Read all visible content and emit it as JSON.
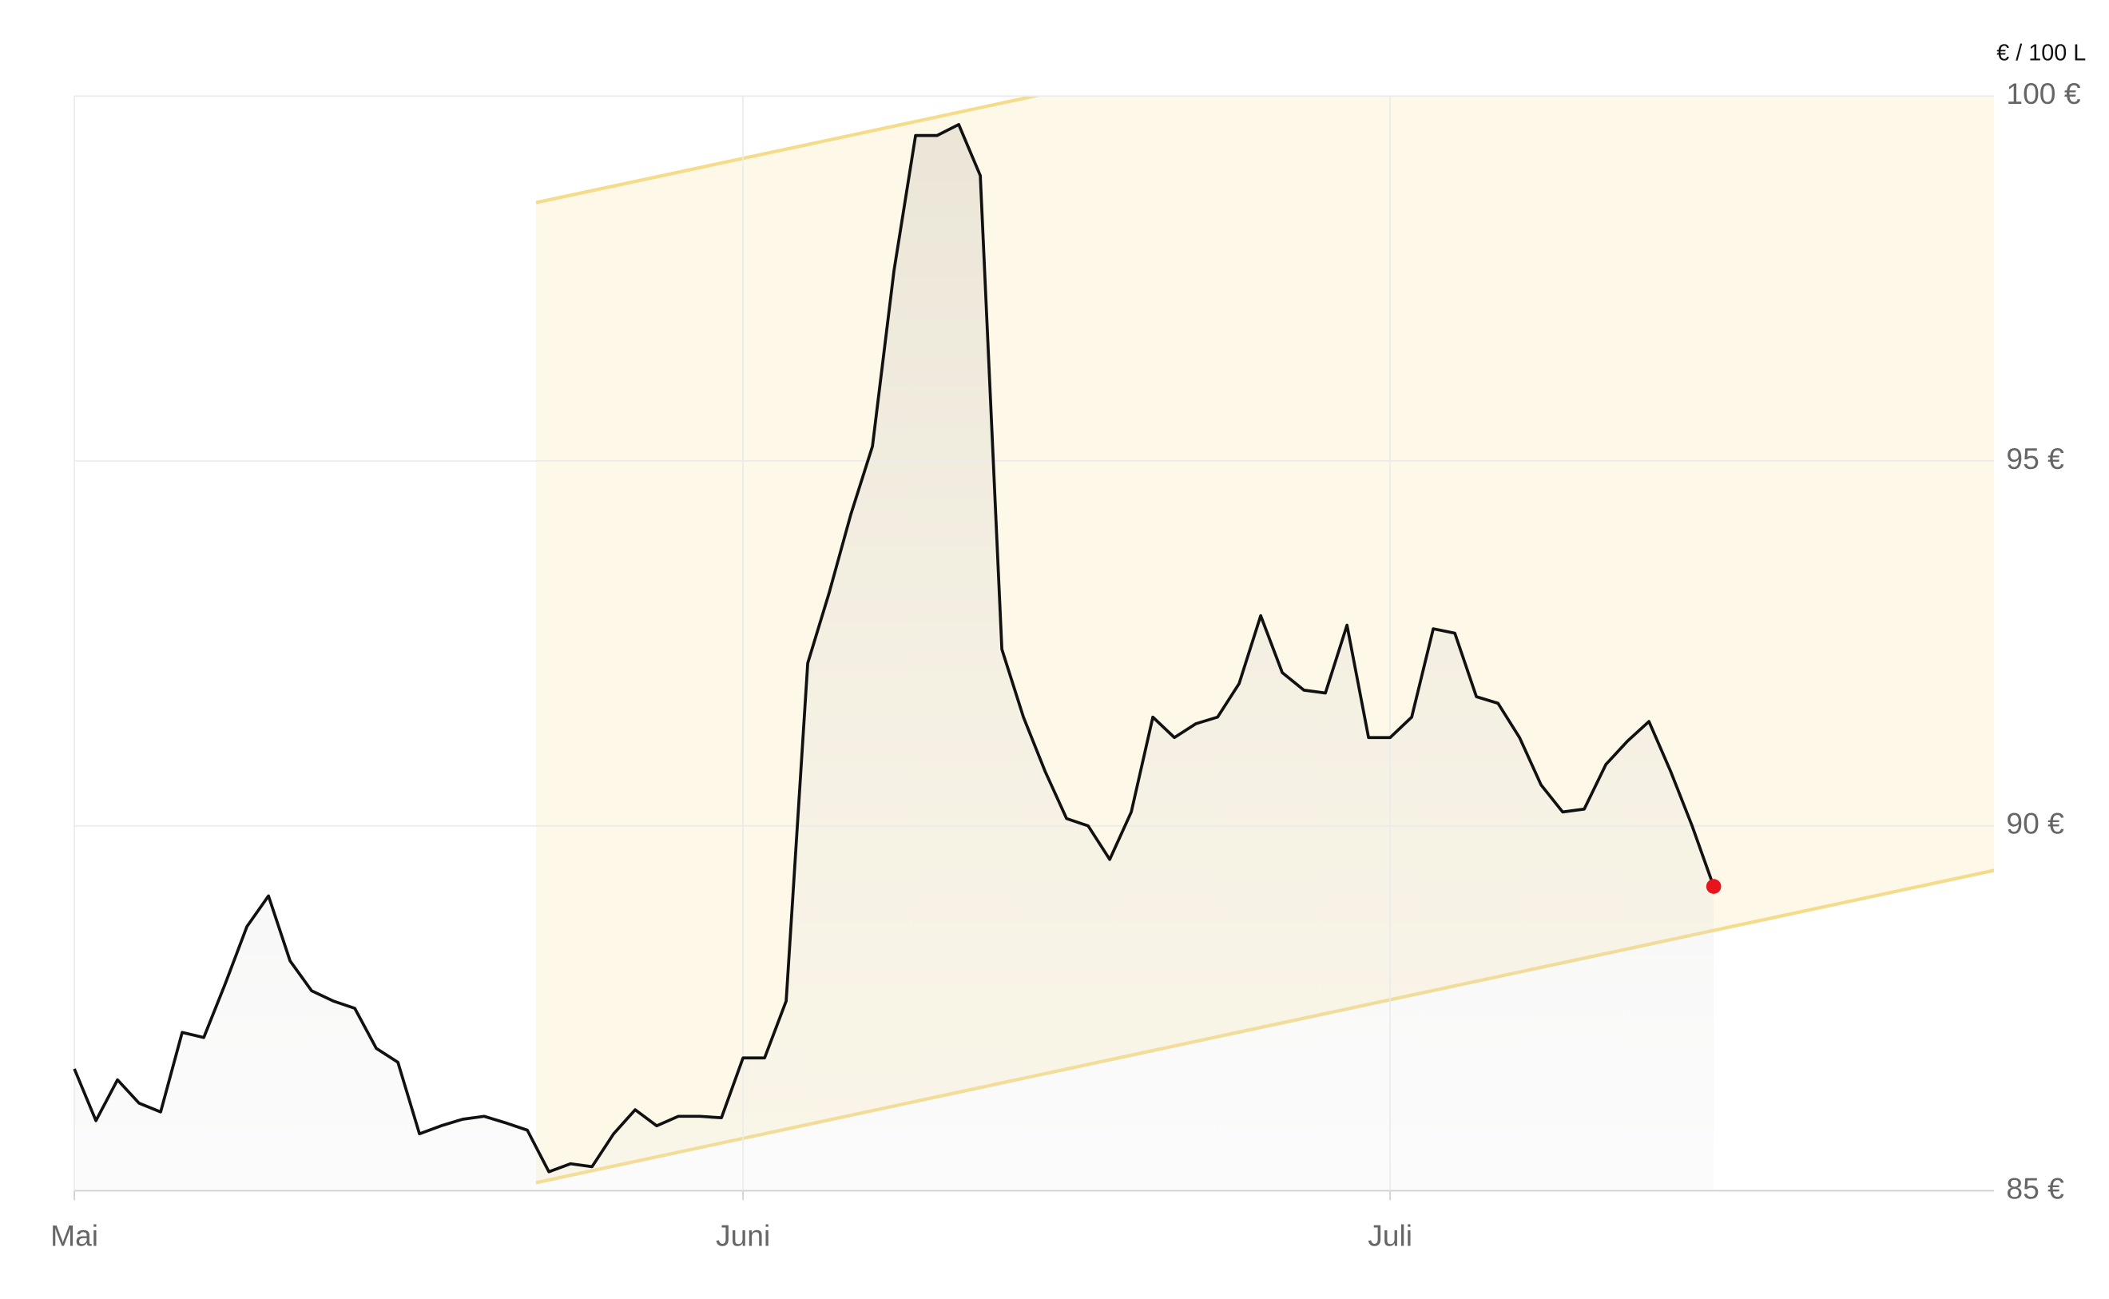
{
  "chart_data": {
    "type": "line",
    "unit_label": "€ / 100 L",
    "x": [
      0,
      1,
      2,
      3,
      4,
      5,
      6,
      7,
      8,
      9,
      10,
      11,
      12,
      13,
      14,
      15,
      16,
      17,
      18,
      19,
      20,
      21,
      22,
      23,
      24,
      25,
      26,
      27,
      28,
      29,
      30,
      31,
      32,
      33,
      34,
      35,
      36,
      37,
      38,
      39,
      40,
      41,
      42,
      43,
      44,
      45,
      46,
      47,
      48,
      49,
      50,
      51,
      52,
      53,
      54,
      55,
      56,
      57,
      58,
      59,
      60,
      61,
      62,
      63,
      64,
      65,
      66,
      67,
      68,
      69,
      70,
      71,
      72,
      73,
      74,
      75,
      76
    ],
    "series": [
      {
        "color": "#111111",
        "values": [
          86.67,
          85.96,
          86.52,
          86.2,
          86.08,
          87.17,
          87.1,
          87.84,
          88.62,
          89.04,
          88.15,
          87.74,
          87.6,
          87.5,
          86.95,
          86.76,
          85.78,
          85.89,
          85.98,
          86.02,
          85.93,
          85.83,
          85.26,
          85.37,
          85.33,
          85.78,
          86.11,
          85.89,
          86.02,
          86.02,
          86.0,
          86.82,
          86.82,
          87.6,
          92.23,
          93.2,
          94.27,
          95.2,
          97.61,
          99.46,
          99.46,
          99.61,
          98.91,
          92.42,
          91.49,
          90.75,
          90.1,
          90.0,
          89.54,
          90.19,
          91.49,
          91.21,
          91.4,
          91.49,
          91.95,
          92.88,
          92.1,
          91.86,
          91.82,
          92.75,
          91.21,
          91.21,
          91.49,
          92.7,
          92.64,
          91.77,
          91.68,
          91.21,
          90.56,
          90.19,
          90.23,
          90.84,
          91.16,
          91.43,
          90.75,
          90.0,
          89.17
        ]
      }
    ],
    "last_point_color": "#e8141b",
    "channel": {
      "x": [
        21.4,
        89
      ],
      "upper": [
        98.54,
        102.81
      ],
      "lower": [
        85.11,
        89.39
      ],
      "fill": "#fdf8e8",
      "line_color": "#f5dc8a"
    },
    "xlim": [
      0,
      89
    ],
    "xticks": [
      {
        "value": 0,
        "label": "Mai"
      },
      {
        "value": 31,
        "label": "Juni"
      },
      {
        "value": 61,
        "label": "Juli"
      }
    ],
    "ylim": [
      85,
      100
    ],
    "yticks": [
      {
        "value": 85,
        "label": "85 €"
      },
      {
        "value": 90,
        "label": "90 €"
      },
      {
        "value": 95,
        "label": "95 €"
      },
      {
        "value": 100,
        "label": "100 €"
      }
    ],
    "grid": true
  }
}
